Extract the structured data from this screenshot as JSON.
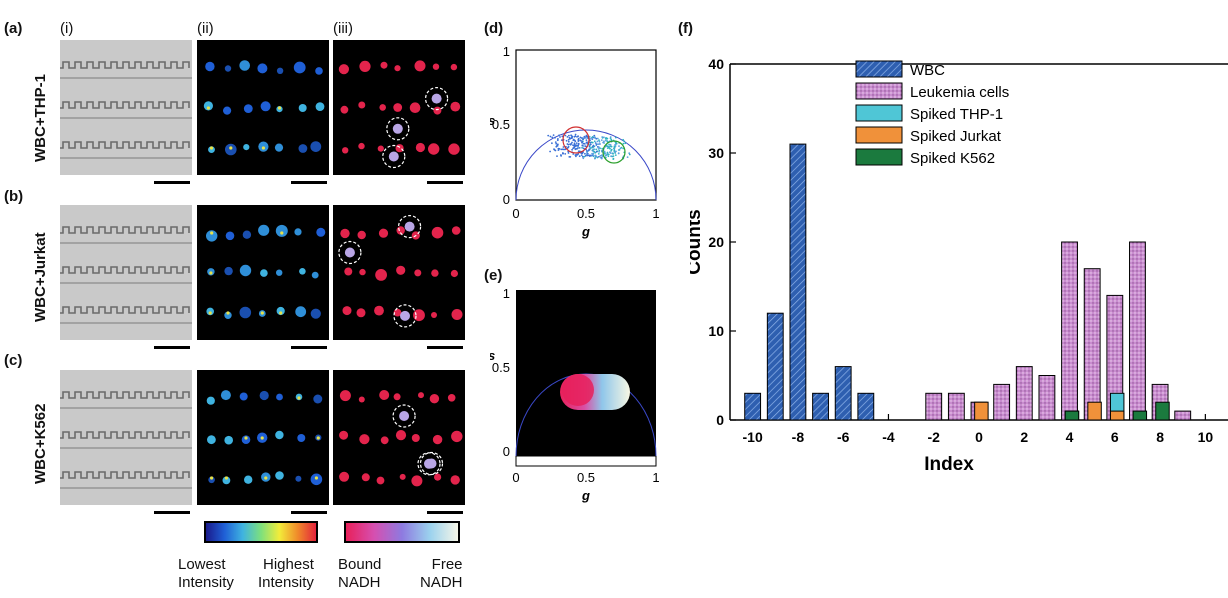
{
  "panel_labels": {
    "a": "(a)",
    "b": "(b)",
    "c": "(c)",
    "d": "(d)",
    "e": "(e)",
    "f": "(f)",
    "i": "(i)",
    "ii": "(ii)",
    "iii": "(iii)"
  },
  "row_labels": [
    "WBC+THP-1",
    "WBC+Jurkat",
    "WBC+K562"
  ],
  "colorbars": {
    "intensity": {
      "low": "Lowest\nIntensity",
      "high": "Highest\nIntensity"
    },
    "nadh": {
      "bound": "Bound\nNADH",
      "free": "Free\nNADH"
    }
  },
  "phasor": {
    "xlabel": "g",
    "ylabel": "s",
    "xticks": [
      "0",
      "0.5",
      "1"
    ],
    "yticks": [
      "0",
      "0.5",
      "1"
    ]
  },
  "chart_data": {
    "type": "bar",
    "xlabel": "Index",
    "ylabel": "Counts",
    "xlim": [
      -11,
      11
    ],
    "ylim": [
      0,
      40
    ],
    "xticks": [
      -10,
      -8,
      -6,
      -4,
      -2,
      0,
      2,
      4,
      6,
      8,
      10
    ],
    "yticks": [
      0,
      10,
      20,
      30,
      40
    ],
    "legend_position": "top-center",
    "series": [
      {
        "name": "WBC",
        "color": "#2e5fb0",
        "points": [
          [
            -10,
            3
          ],
          [
            -9,
            12
          ],
          [
            -8,
            31
          ],
          [
            -7,
            3
          ],
          [
            -6,
            6
          ],
          [
            -5,
            3
          ]
        ]
      },
      {
        "name": "Leukemia cells",
        "color": "#c98ccf",
        "points": [
          [
            -2,
            3
          ],
          [
            -1,
            3
          ],
          [
            0,
            2
          ],
          [
            1,
            4
          ],
          [
            2,
            6
          ],
          [
            3,
            5
          ],
          [
            4,
            20
          ],
          [
            5,
            17
          ],
          [
            6,
            14
          ],
          [
            7,
            20
          ],
          [
            8,
            4
          ],
          [
            9,
            1
          ]
        ]
      },
      {
        "name": "Spiked THP-1",
        "color": "#4fc6d6",
        "points": [
          [
            4,
            1
          ],
          [
            6,
            3
          ]
        ]
      },
      {
        "name": "Spiked Jurkat",
        "color": "#f0913a",
        "points": [
          [
            0,
            2
          ],
          [
            5,
            2
          ],
          [
            6,
            1
          ]
        ]
      },
      {
        "name": "Spiked K562",
        "color": "#1b7a3e",
        "points": [
          [
            4,
            1
          ],
          [
            7,
            1
          ],
          [
            8,
            2
          ]
        ]
      }
    ]
  }
}
